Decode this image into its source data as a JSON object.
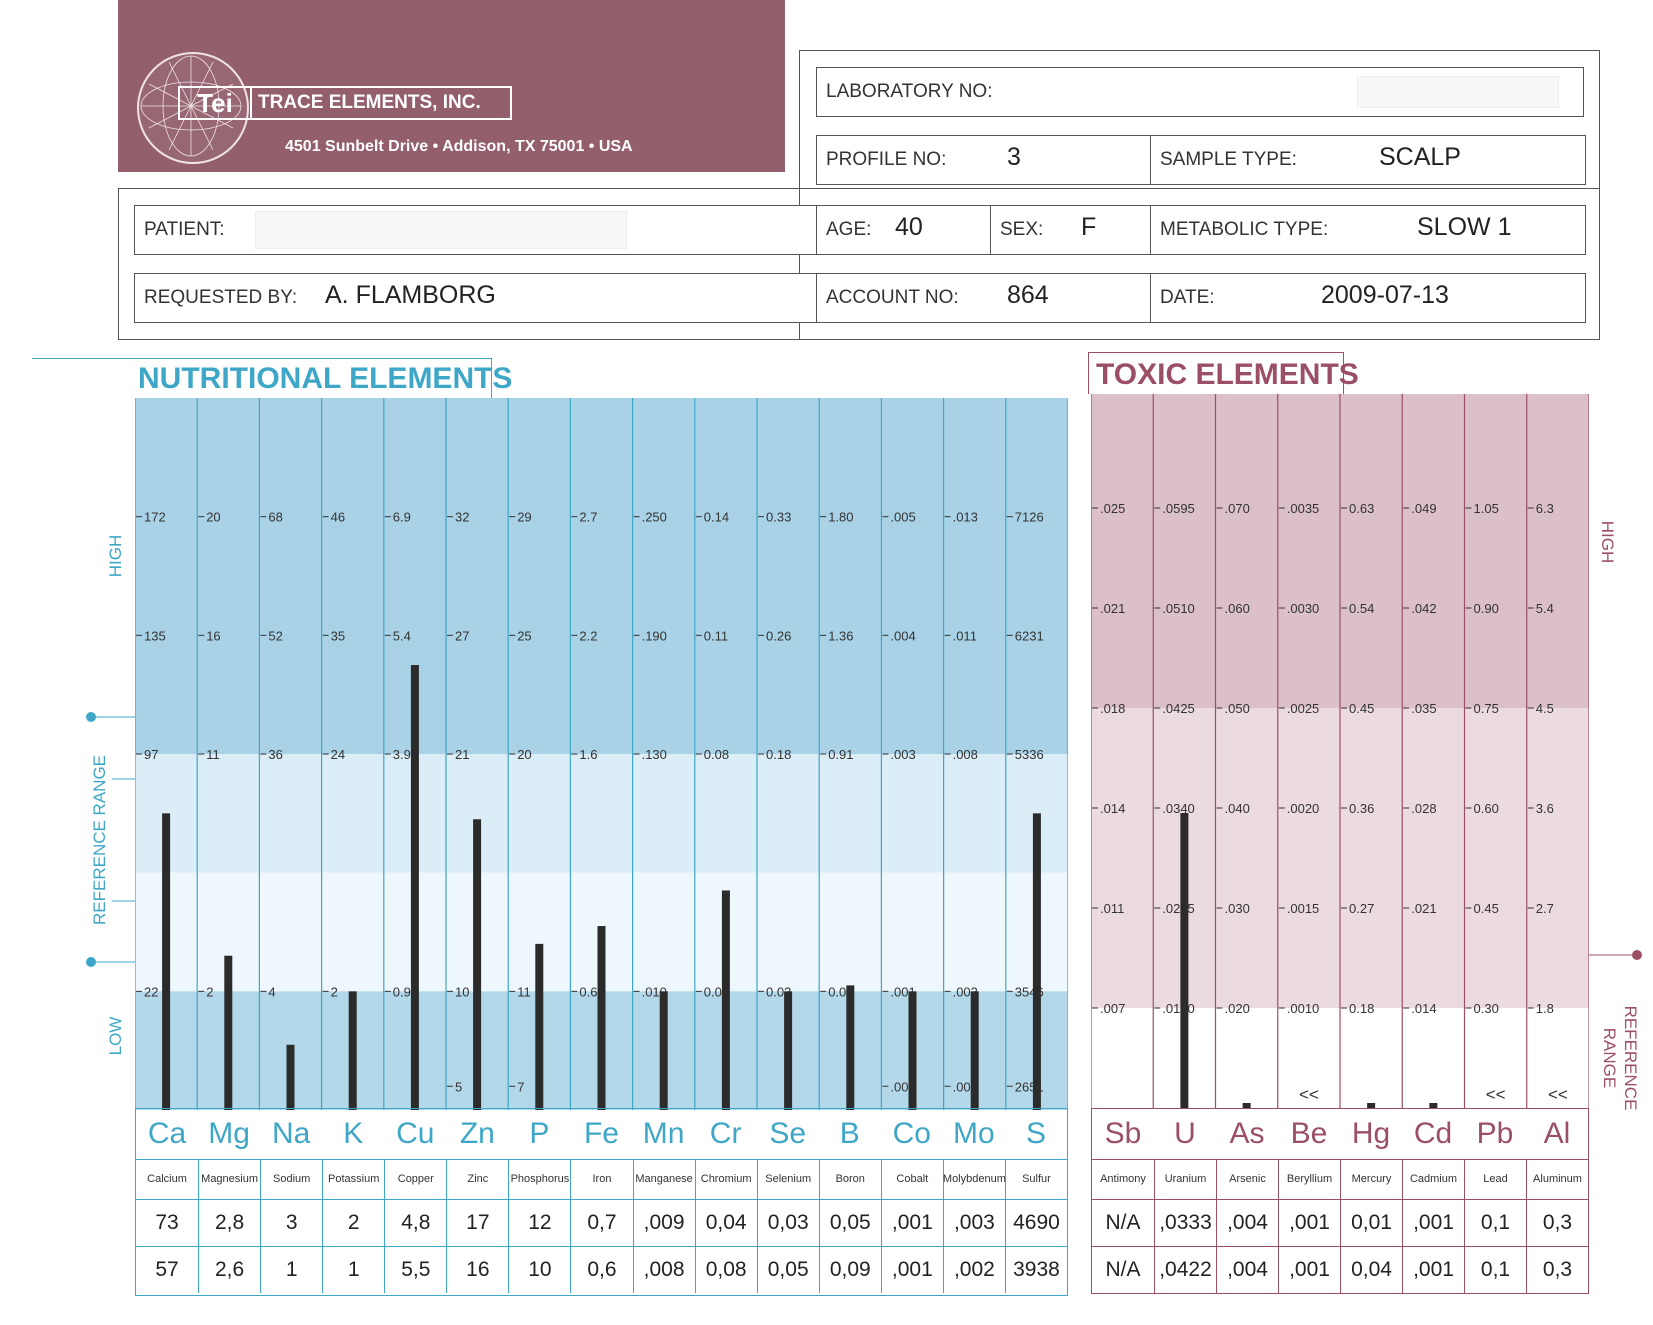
{
  "header": {
    "logo_mark": "Tei",
    "company": "TRACE ELEMENTS, INC.",
    "address": "4501 Sunbelt Drive • Addison, TX  75001 • USA"
  },
  "form": {
    "laboratory_no_label": "LABORATORY NO:",
    "profile_no_label": "PROFILE NO:",
    "profile_no": "3",
    "sample_type_label": "SAMPLE TYPE:",
    "sample_type": "SCALP",
    "patient_label": "PATIENT:",
    "age_label": "AGE:",
    "age": "40",
    "sex_label": "SEX:",
    "sex": "F",
    "metabolic_type_label": "METABOLIC TYPE:",
    "metabolic_type": "SLOW 1",
    "requested_by_label": "REQUESTED BY:",
    "requested_by": "A. FLAMBORG",
    "account_no_label": "ACCOUNT NO:",
    "account_no": "864",
    "date_label": "DATE:",
    "date": "2009-07-13"
  },
  "sections": {
    "nutritional_title": "NUTRITIONAL ELEMENTS",
    "toxic_title": "TOXIC ELEMENTS",
    "high": "HIGH",
    "low": "LOW",
    "reference_range": "REFERENCE RANGE",
    "reference": "REFERENCE",
    "range": "RANGE"
  },
  "colors": {
    "nutritional_accent": "#3ea7c8",
    "toxic_accent": "#9b4f65",
    "banner": "#935f6d",
    "bar": "#2b2b2b"
  },
  "chart_data": [
    {
      "type": "bar",
      "title": "NUTRITIONAL ELEMENTS",
      "bar_level_scale": "0 = bottom of chart, 6 = top of chart; 1 = low reference line, 3 = high reference line",
      "elements": [
        {
          "symbol": "Ca",
          "name": "Calcium",
          "ticks": [
            "172",
            "135",
            "97",
            "22"
          ],
          "results": [
            "73",
            "57"
          ],
          "bar_level": 2.5
        },
        {
          "symbol": "Mg",
          "name": "Magnesium",
          "ticks": [
            "20",
            "16",
            "11",
            "2"
          ],
          "results": [
            "2,8",
            "2,6"
          ],
          "bar_level": 1.3
        },
        {
          "symbol": "Na",
          "name": "Sodium",
          "ticks": [
            "68",
            "52",
            "36",
            "4"
          ],
          "results": [
            "3",
            "1"
          ],
          "bar_level": 0.55
        },
        {
          "symbol": "K",
          "name": "Potassium",
          "ticks": [
            "46",
            "35",
            "24",
            "2"
          ],
          "results": [
            "2",
            "1"
          ],
          "bar_level": 1.0
        },
        {
          "symbol": "Cu",
          "name": "Copper",
          "ticks": [
            "6.9",
            "5.4",
            "3.9",
            "0.9"
          ],
          "results": [
            "4,8",
            "5,5"
          ],
          "bar_level": 3.75
        },
        {
          "symbol": "Zn",
          "name": "Zinc",
          "ticks": [
            "32",
            "27",
            "21",
            "10"
          ],
          "low_tick": "5",
          "results": [
            "17",
            "16"
          ],
          "bar_level": 2.45
        },
        {
          "symbol": "P",
          "name": "Phosphorus",
          "ticks": [
            "29",
            "25",
            "20",
            "11"
          ],
          "low_tick": "7",
          "results": [
            "12",
            "10"
          ],
          "bar_level": 1.4
        },
        {
          "symbol": "Fe",
          "name": "Iron",
          "ticks": [
            "2.7",
            "2.2",
            "1.6",
            "0.6"
          ],
          "results": [
            "0,7",
            "0,6"
          ],
          "bar_level": 1.55
        },
        {
          "symbol": "Mn",
          "name": "Manganese",
          "ticks": [
            ".250",
            ".190",
            ".130",
            ".010"
          ],
          "results": [
            ",009",
            ",008"
          ],
          "bar_level": 1.0
        },
        {
          "symbol": "Cr",
          "name": "Chromium",
          "ticks": [
            "0.14",
            "0.11",
            "0.08",
            "0.02"
          ],
          "results": [
            "0,04",
            "0,08"
          ],
          "bar_level": 1.85
        },
        {
          "symbol": "Se",
          "name": "Selenium",
          "ticks": [
            "0.33",
            "0.26",
            "0.18",
            "0.03"
          ],
          "results": [
            "0,03",
            "0,05"
          ],
          "bar_level": 1.0
        },
        {
          "symbol": "B",
          "name": "Boron",
          "ticks": [
            "1.80",
            "1.36",
            "0.91",
            "0.02"
          ],
          "results": [
            "0,05",
            "0,09"
          ],
          "bar_level": 1.05
        },
        {
          "symbol": "Co",
          "name": "Cobalt",
          "ticks": [
            ".005",
            ".004",
            ".003",
            ".001"
          ],
          "low_tick": ".000",
          "results": [
            ",001",
            ",001"
          ],
          "bar_level": 1.0
        },
        {
          "symbol": "Mo",
          "name": "Molybdenum",
          "ticks": [
            ".013",
            ".011",
            ".008",
            ".003"
          ],
          "low_tick": ".001",
          "results": [
            ",003",
            ",002"
          ],
          "bar_level": 1.0
        },
        {
          "symbol": "S",
          "name": "Sulfur",
          "ticks": [
            "7126",
            "6231",
            "5336",
            "3546"
          ],
          "low_tick": "2651",
          "results": [
            "4690",
            "3938"
          ],
          "bar_level": 2.5
        }
      ]
    },
    {
      "type": "bar",
      "title": "TOXIC ELEMENTS",
      "bar_level_scale": "0 = bottom of chart, 1 = reference line, 6 = top of chart",
      "elements": [
        {
          "symbol": "Sb",
          "name": "Antimony",
          "ticks": [
            ".025",
            ".021",
            ".018",
            ".014",
            ".011",
            ".007"
          ],
          "results": [
            "N/A",
            "N/A"
          ],
          "bar_level": 0
        },
        {
          "symbol": "U",
          "name": "Uranium",
          "ticks": [
            ".0595",
            ".0510",
            ".0425",
            ".0340",
            ".0255",
            ".0170"
          ],
          "results": [
            ",0333",
            ",0422"
          ],
          "bar_level": 2.95
        },
        {
          "symbol": "As",
          "name": "Arsenic",
          "ticks": [
            ".070",
            ".060",
            ".050",
            ".040",
            ".030",
            ".020"
          ],
          "results": [
            ",004",
            ",004"
          ],
          "bar_level": 0.05
        },
        {
          "symbol": "Be",
          "name": "Beryllium",
          "ticks": [
            ".0035",
            ".0030",
            ".0025",
            ".0020",
            ".0015",
            ".0010"
          ],
          "results": [
            ",001",
            ",001"
          ],
          "bar_level": 0,
          "marker": "<<"
        },
        {
          "symbol": "Hg",
          "name": "Mercury",
          "ticks": [
            "0.63",
            "0.54",
            "0.45",
            "0.36",
            "0.27",
            "0.18"
          ],
          "results": [
            "0,01",
            "0,04"
          ],
          "bar_level": 0.05
        },
        {
          "symbol": "Cd",
          "name": "Cadmium",
          "ticks": [
            ".049",
            ".042",
            ".035",
            ".028",
            ".021",
            ".014"
          ],
          "results": [
            ",001",
            ",001"
          ],
          "bar_level": 0.05
        },
        {
          "symbol": "Pb",
          "name": "Lead",
          "ticks": [
            "1.05",
            "0.90",
            "0.75",
            "0.60",
            "0.45",
            "0.30"
          ],
          "results": [
            "0,1",
            "0,1"
          ],
          "bar_level": 0,
          "marker": "<<"
        },
        {
          "symbol": "Al",
          "name": "Aluminum",
          "ticks": [
            "6.3",
            "5.4",
            "4.5",
            "3.6",
            "2.7",
            "1.8"
          ],
          "results": [
            "0,3",
            "0,3"
          ],
          "bar_level": 0,
          "marker": "<<"
        }
      ]
    }
  ]
}
